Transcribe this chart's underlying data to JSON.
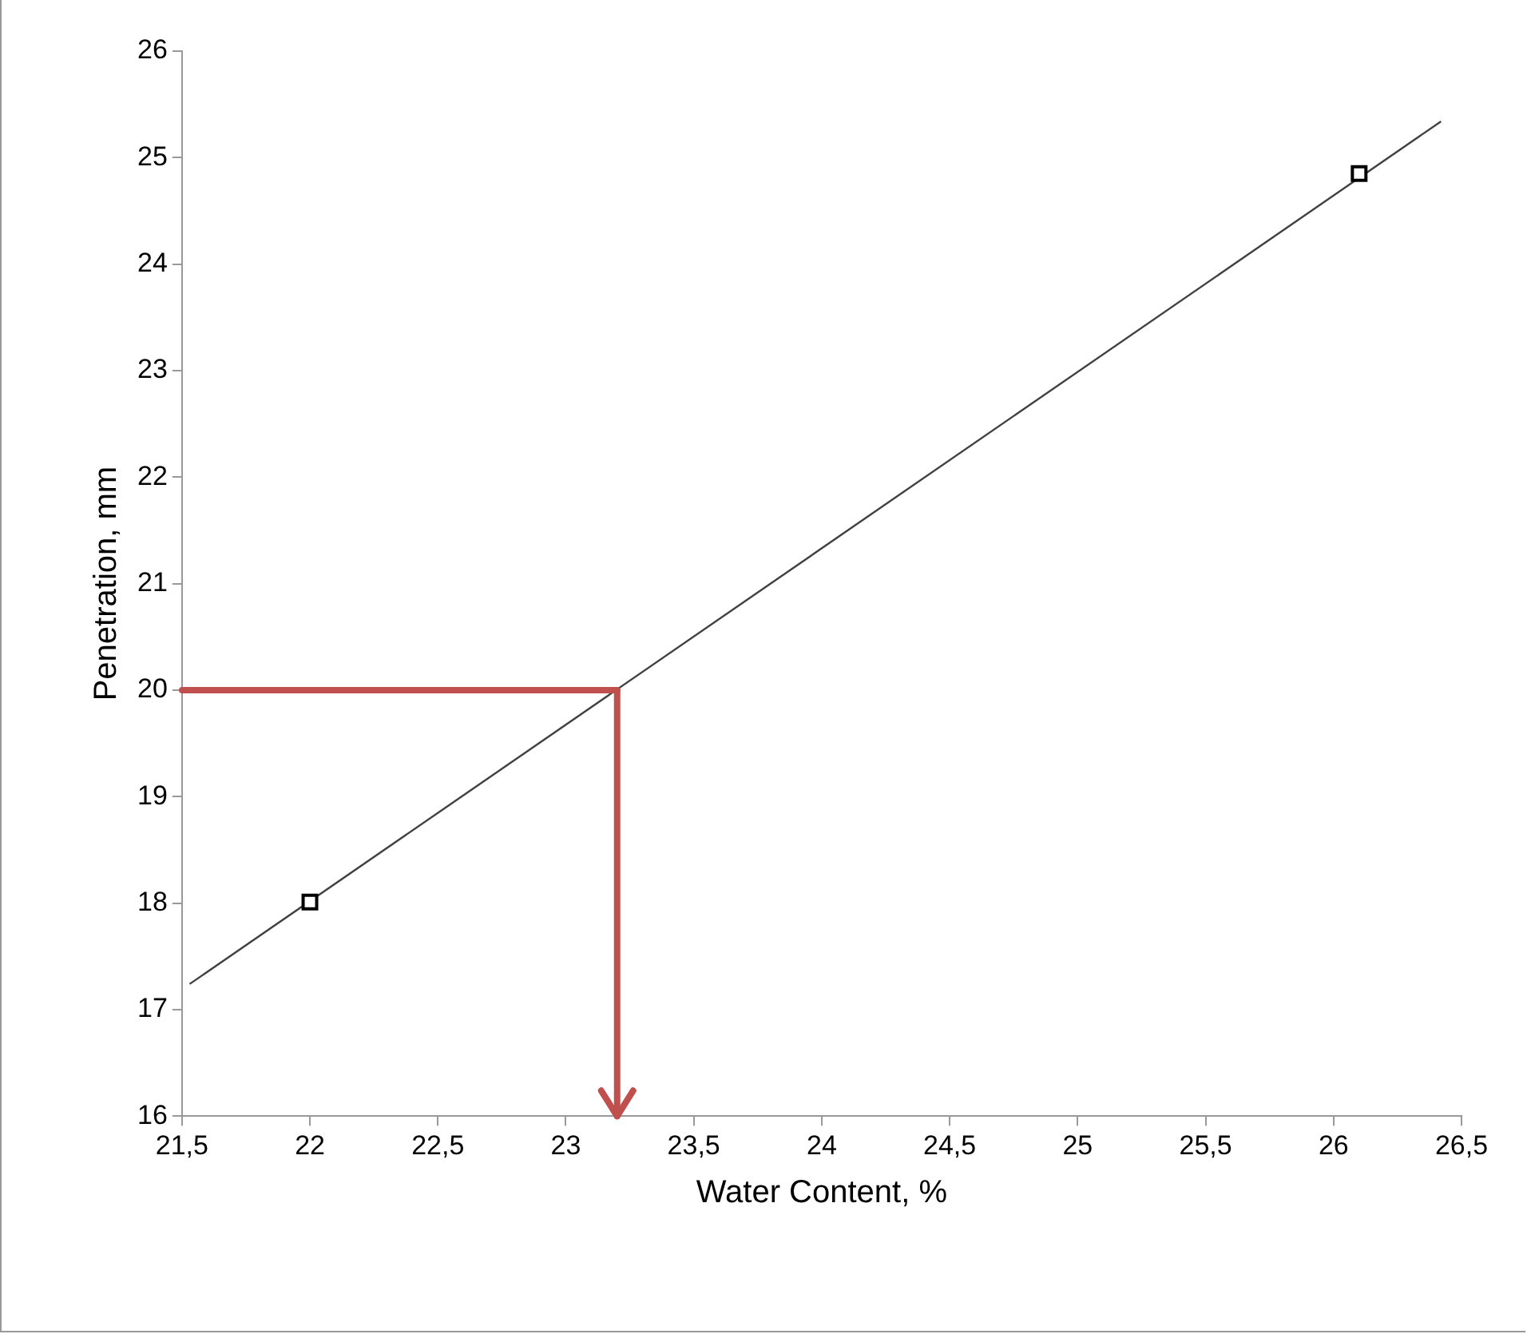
{
  "chart_data": {
    "type": "scatter",
    "xlabel": "Water Content, %",
    "ylabel": "Penetration, mm",
    "xlim": [
      21.5,
      26.5
    ],
    "xticks": [
      {
        "value": 21.5,
        "label": "21,5"
      },
      22,
      {
        "value": 22.5,
        "label": "22,5"
      },
      23,
      {
        "value": 23.5,
        "label": "23,5"
      },
      24,
      {
        "value": 24.5,
        "label": "24,5"
      },
      25,
      {
        "value": 25.5,
        "label": "25,5"
      },
      26,
      {
        "value": 26.5,
        "label": "26,5"
      }
    ],
    "ylim": [
      16,
      26
    ],
    "yticks": [
      16,
      17,
      18,
      19,
      20,
      21,
      22,
      23,
      24,
      25,
      26
    ],
    "grid": false,
    "legend": false,
    "ref_lines": [
      {
        "axis": "y",
        "value": 20,
        "color": "#c0504d"
      },
      {
        "axis": "x",
        "value": 23.2,
        "color": "#c0504d"
      }
    ],
    "series": [
      {
        "type": "scatter",
        "marker": "square",
        "color": "#000000",
        "x": [
          22,
          26.1
        ],
        "values": [
          18.01,
          24.85
        ]
      },
      {
        "type": "line",
        "marker": "none",
        "color": "#404040",
        "x": [
          21.53,
          26.42
        ],
        "values": [
          17.24,
          25.34
        ]
      }
    ]
  }
}
